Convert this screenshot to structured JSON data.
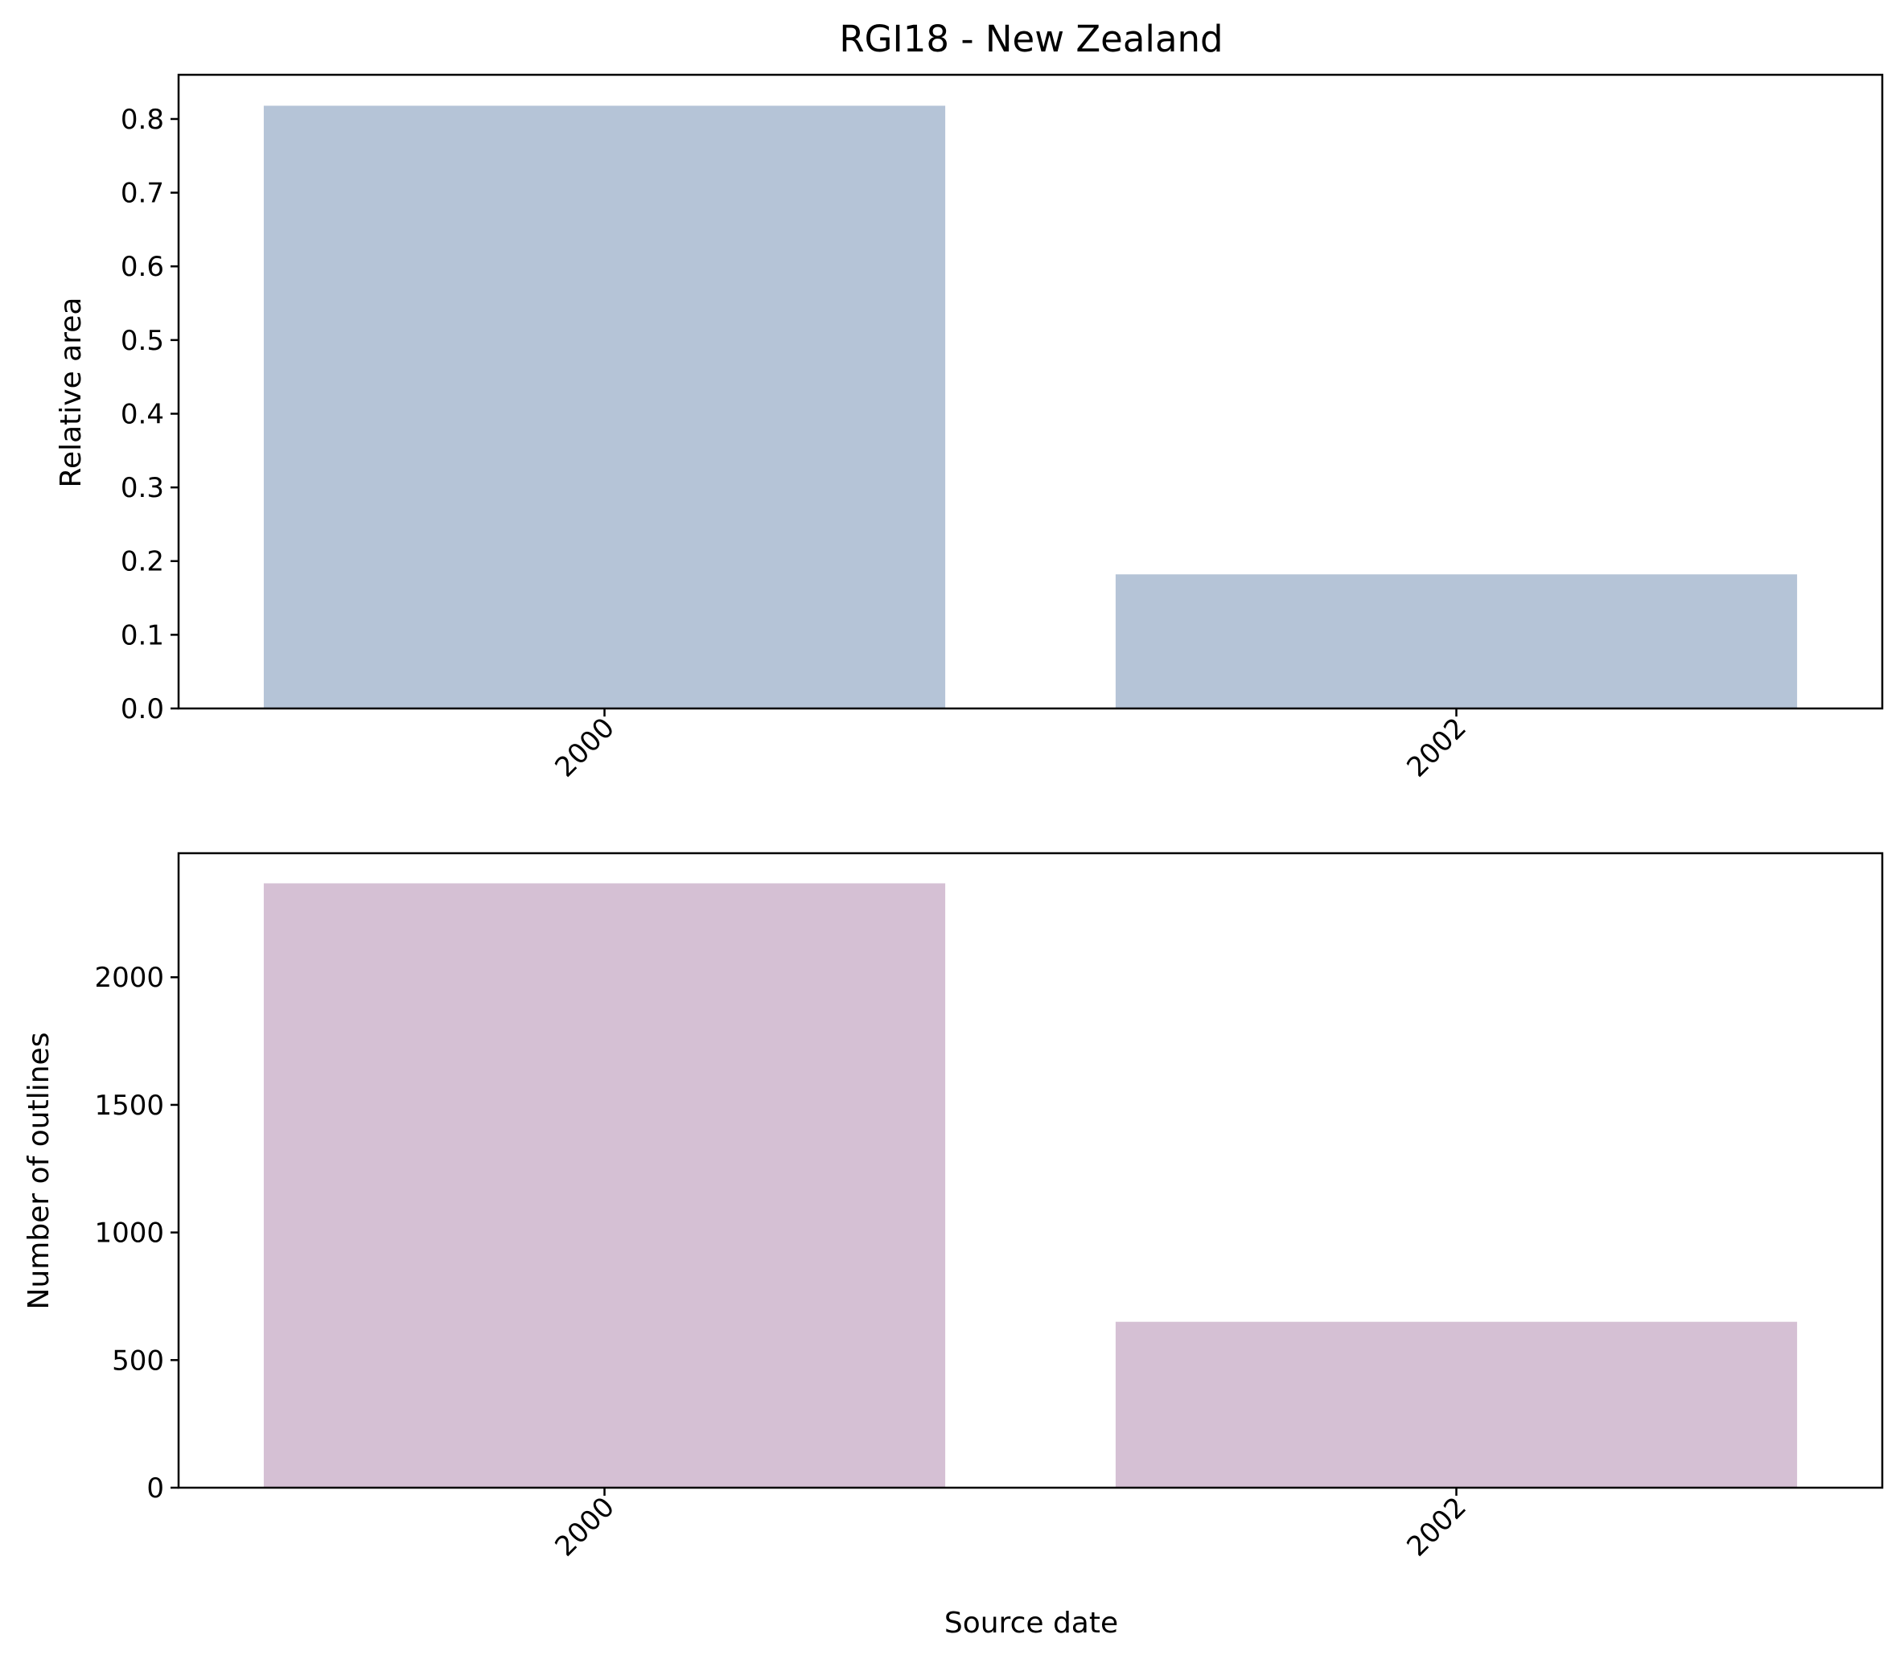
{
  "chart_data": [
    {
      "type": "bar",
      "title": "RGI18 - New Zealand",
      "categories": [
        "2000",
        "2002"
      ],
      "values": [
        0.818,
        0.182
      ],
      "xlabel": "",
      "ylabel": "Relative area",
      "ylim": [
        0,
        0.86
      ],
      "yticks": [
        "0.0",
        "0.1",
        "0.2",
        "0.3",
        "0.4",
        "0.5",
        "0.6",
        "0.7",
        "0.8"
      ],
      "bar_color": "#b5c4d7",
      "grid": false,
      "legend": "none"
    },
    {
      "type": "bar",
      "title": "",
      "categories": [
        "2000",
        "2002"
      ],
      "values": [
        2368,
        650
      ],
      "xlabel": "Source date",
      "ylabel": "Number of outlines",
      "ylim": [
        0,
        2486
      ],
      "yticks": [
        "0",
        "500",
        "1000",
        "1500",
        "2000"
      ],
      "bar_color": "#d5c0d4",
      "grid": false,
      "legend": "none"
    }
  ]
}
